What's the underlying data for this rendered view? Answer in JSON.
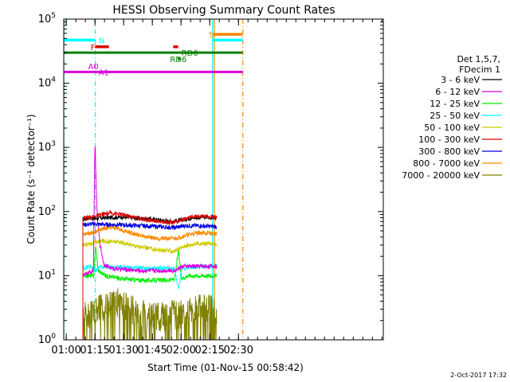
{
  "chart_data": {
    "type": "line",
    "title": "HESSI Observing Summary Count Rates",
    "xlabel": "Start Time (01-Nov-15 00:58:42)",
    "ylabel": "Count Rate (s⁻¹ detector⁻¹)",
    "yscale": "log",
    "ylim": [
      1,
      100000
    ],
    "xlim_minutes": [
      0,
      167
    ],
    "x_ticks": [
      {
        "label": "01:00",
        "t": 1.3
      },
      {
        "label": "01:15",
        "t": 16.3
      },
      {
        "label": "01:30",
        "t": 31.3
      },
      {
        "label": "01:45",
        "t": 46.3
      },
      {
        "label": "02:00",
        "t": 61.3
      },
      {
        "label": "02:15",
        "t": 76.3
      },
      {
        "label": "02:30",
        "t": 91.3
      }
    ],
    "y_ticks": [
      {
        "base": "10",
        "exp": "0",
        "v": 1
      },
      {
        "base": "10",
        "exp": "1",
        "v": 10
      },
      {
        "base": "10",
        "exp": "2",
        "v": 100
      },
      {
        "base": "10",
        "exp": "3",
        "v": 1000
      },
      {
        "base": "10",
        "exp": "4",
        "v": 10000
      },
      {
        "base": "10",
        "exp": "5",
        "v": 100000
      }
    ],
    "legend_header": [
      "Det 1,5,7,",
      "FDecim 1"
    ],
    "series": [
      {
        "name": "3 - 6 keV",
        "color": "#000000",
        "values": [
          [
            10,
            75
          ],
          [
            13,
            80
          ],
          [
            16,
            78
          ],
          [
            22,
            80
          ],
          [
            30,
            82
          ],
          [
            40,
            78
          ],
          [
            50,
            74
          ],
          [
            55,
            70
          ],
          [
            60,
            72
          ],
          [
            65,
            78
          ],
          [
            72,
            82
          ],
          [
            80,
            80
          ]
        ]
      },
      {
        "name": "6 - 12 keV",
        "color": "#dd00dd",
        "values": [
          [
            10,
            10
          ],
          [
            15.5,
            12
          ],
          [
            16.3,
            1200
          ],
          [
            17.5,
            80
          ],
          [
            19,
            30
          ],
          [
            21,
            15
          ],
          [
            25,
            13
          ],
          [
            40,
            12
          ],
          [
            58,
            12
          ],
          [
            62,
            14
          ],
          [
            70,
            14
          ],
          [
            80,
            14
          ]
        ]
      },
      {
        "name": "12 - 25 keV",
        "color": "#00ee00",
        "values": [
          [
            10,
            10
          ],
          [
            15.8,
            10
          ],
          [
            16.6,
            30
          ],
          [
            18,
            12
          ],
          [
            22,
            10
          ],
          [
            30,
            9
          ],
          [
            40,
            8.5
          ],
          [
            55,
            8.5
          ],
          [
            58,
            9
          ],
          [
            60,
            25
          ],
          [
            61.5,
            9
          ],
          [
            65,
            10
          ],
          [
            75,
            10
          ],
          [
            80,
            10
          ]
        ]
      },
      {
        "name": "25 - 50 keV",
        "color": "#00ffff",
        "values": [
          [
            10,
            13
          ],
          [
            14,
            14
          ],
          [
            16.5,
            12
          ],
          [
            20,
            14
          ],
          [
            30,
            13.5
          ],
          [
            45,
            13
          ],
          [
            58,
            13
          ],
          [
            60,
            6
          ],
          [
            61.5,
            13
          ],
          [
            70,
            14
          ],
          [
            80,
            14
          ]
        ]
      },
      {
        "name": "50 - 100 keV",
        "color": "#cccc00",
        "values": [
          [
            10,
            30
          ],
          [
            15,
            32
          ],
          [
            20,
            35
          ],
          [
            30,
            33
          ],
          [
            40,
            28
          ],
          [
            50,
            25
          ],
          [
            58,
            24
          ],
          [
            63,
            29
          ],
          [
            70,
            32
          ],
          [
            80,
            31
          ]
        ]
      },
      {
        "name": "100 - 300 keV",
        "color": "#dd0000",
        "values": [
          [
            10,
            80
          ],
          [
            15,
            82
          ],
          [
            20,
            90
          ],
          [
            25,
            95
          ],
          [
            30,
            90
          ],
          [
            40,
            78
          ],
          [
            50,
            70
          ],
          [
            58,
            68
          ],
          [
            62,
            75
          ],
          [
            70,
            85
          ],
          [
            80,
            83
          ]
        ]
      },
      {
        "name": "300 - 800 keV",
        "color": "#0000dd",
        "values": [
          [
            10,
            62
          ],
          [
            15,
            64
          ],
          [
            20,
            63
          ],
          [
            30,
            62
          ],
          [
            40,
            60
          ],
          [
            50,
            58
          ],
          [
            58,
            56
          ],
          [
            63,
            60
          ],
          [
            70,
            60
          ],
          [
            80,
            58
          ]
        ]
      },
      {
        "name": "800 - 7000 keV",
        "color": "#ff8800",
        "values": [
          [
            10,
            45
          ],
          [
            15,
            47
          ],
          [
            20,
            53
          ],
          [
            25,
            58
          ],
          [
            30,
            52
          ],
          [
            40,
            42
          ],
          [
            50,
            38
          ],
          [
            58,
            38
          ],
          [
            63,
            42
          ],
          [
            70,
            47
          ],
          [
            80,
            45
          ]
        ]
      },
      {
        "name": "7000 - 20000 keV",
        "color": "#808000",
        "values": [
          [
            10,
            2.3
          ],
          [
            20,
            3.3
          ],
          [
            30,
            3.8
          ],
          [
            40,
            2.5
          ],
          [
            50,
            2.2
          ],
          [
            60,
            2.5
          ],
          [
            70,
            3.2
          ],
          [
            80,
            2.8
          ]
        ]
      }
    ],
    "flag_lines": [
      {
        "name": "N",
        "color": "#00ffff",
        "t_start": 0,
        "t_end": 16.4,
        "v": 47000
      },
      {
        "name": "S",
        "color": "#ff8800",
        "t_start": 78,
        "t_end": 93.5,
        "v": 58000
      },
      {
        "name": "S",
        "color": "#00ffff",
        "t_start": 78,
        "t_end": 93.5,
        "v": 47000
      },
      {
        "name": "F",
        "color": "#dd0000",
        "t_start": 16.4,
        "t_end": 23.6,
        "v": 37000
      },
      {
        "name": "F",
        "color": "#dd0000",
        "t_start": 57.2,
        "t_end": 59.8,
        "v": 37000
      },
      {
        "name": "RD0",
        "color": "#008000",
        "t_start": 0,
        "t_end": 93.5,
        "v": 30000
      },
      {
        "name": "RD6",
        "color": "#008000",
        "t_start": 59.6,
        "t_end": 60.8,
        "v": 24000
      },
      {
        "name": "A1",
        "color": "#dd00dd",
        "t_start": 0,
        "t_end": 93.5,
        "v": 15000
      },
      {
        "name": "A0",
        "color": "#dd00dd",
        "t_start": 16.2,
        "t_end": 16.6,
        "v": 18500
      }
    ],
    "flag_labels": [
      {
        "text": "N",
        "color": "#00ffff",
        "t": 18.3,
        "v": 47000
      },
      {
        "text": "S",
        "color": "#ff8800",
        "t": 75.8,
        "v": 58000
      },
      {
        "text": "F",
        "color": "#dd0000",
        "t": 14.0,
        "v": 37000
      },
      {
        "text": "RD0",
        "color": "#008000",
        "t": 61.5,
        "v": 30000
      },
      {
        "text": "RD6",
        "color": "#008000",
        "t": 55.5,
        "v": 24000
      },
      {
        "text": "A0",
        "color": "#dd00dd",
        "t": 12.7,
        "v": 18500
      },
      {
        "text": "A1",
        "color": "#dd00dd",
        "t": 18.2,
        "v": 15000
      }
    ],
    "vertical_markers": [
      {
        "color": "#00ffff",
        "style": "dashed",
        "t": 0.1
      },
      {
        "color": "#00ffff",
        "style": "dashed",
        "t": 16.5
      },
      {
        "color": "#00ffff",
        "style": "solid",
        "t": 77.8
      },
      {
        "color": "#ff8800",
        "style": "solid",
        "t": 78.7
      },
      {
        "color": "#ff8800",
        "style": "dashed",
        "t": 93.6
      }
    ],
    "legend_position": "right",
    "footer_timestamp": "2-Oct-2017 17:32"
  }
}
